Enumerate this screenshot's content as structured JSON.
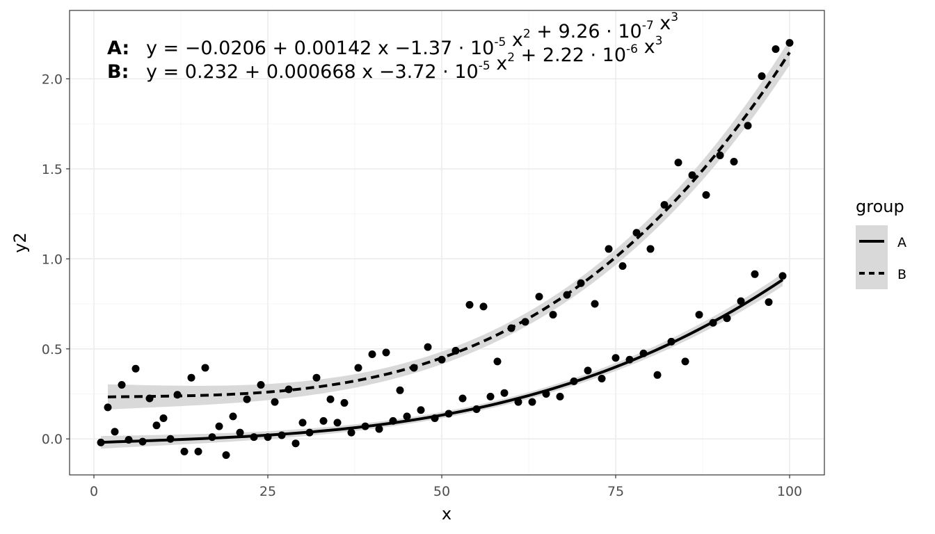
{
  "chart_data": {
    "type": "scatter",
    "xlabel": "x",
    "ylabel": "y2",
    "xlim": [
      -3.5,
      105
    ],
    "ylim": [
      -0.2,
      2.38
    ],
    "x_ticks": [
      0,
      25,
      50,
      75,
      100
    ],
    "x_tick_labels": [
      "0",
      "25",
      "50",
      "75",
      "100"
    ],
    "y_ticks": [
      0,
      0.5,
      1,
      1.5,
      2
    ],
    "y_tick_labels": [
      "0.0",
      "0.5",
      "1.0",
      "1.5",
      "2.0"
    ],
    "grid": true,
    "legend": {
      "title": "group",
      "position": "right",
      "items": [
        {
          "label": "A",
          "linetype": "solid"
        },
        {
          "label": "B",
          "linetype": "dashed"
        }
      ]
    },
    "equations": [
      {
        "label": "A:",
        "parts": [
          {
            "t": "y = "
          },
          {
            "t": "−"
          },
          {
            "t": "0.0206 + 0.00142 x "
          },
          {
            "t": "−"
          },
          {
            "t": "1.37 · 10"
          },
          {
            "t": "-5",
            "sup": true
          },
          {
            "t": " x"
          },
          {
            "t": "2",
            "sup": true
          },
          {
            "t": " + 9.26 · 10"
          },
          {
            "t": "-7",
            "sup": true
          },
          {
            "t": " x"
          },
          {
            "t": "3",
            "sup": true
          }
        ]
      },
      {
        "label": "B:",
        "parts": [
          {
            "t": "y = 0.232 + 0.000668 x "
          },
          {
            "t": "−"
          },
          {
            "t": "3.72 · 10"
          },
          {
            "t": "-5",
            "sup": true
          },
          {
            "t": " x"
          },
          {
            "t": "2",
            "sup": true
          },
          {
            "t": " + 2.22 · 10"
          },
          {
            "t": "-6",
            "sup": true
          },
          {
            "t": " x"
          },
          {
            "t": "3",
            "sup": true
          }
        ]
      }
    ],
    "series": [
      {
        "name": "A",
        "linetype": "solid",
        "fit": {
          "coefficients": [
            -0.0206,
            0.00142,
            -1.37e-05,
            9.26e-07
          ],
          "x_range": [
            1,
            99
          ],
          "se": 0.035
        },
        "points": [
          [
            1,
            -0.02
          ],
          [
            3,
            0.04
          ],
          [
            5,
            -0.005
          ],
          [
            7,
            -0.015
          ],
          [
            9,
            0.075
          ],
          [
            10,
            0.115
          ],
          [
            11,
            0.0
          ],
          [
            13,
            -0.07
          ],
          [
            15,
            -0.07
          ],
          [
            17,
            0.01
          ],
          [
            18,
            0.07
          ],
          [
            19,
            -0.09
          ],
          [
            20,
            0.125
          ],
          [
            21,
            0.035
          ],
          [
            23,
            0.01
          ],
          [
            25,
            0.01
          ],
          [
            27,
            0.02
          ],
          [
            29,
            -0.025
          ],
          [
            30,
            0.09
          ],
          [
            31,
            0.035
          ],
          [
            33,
            0.1
          ],
          [
            35,
            0.09
          ],
          [
            37,
            0.035
          ],
          [
            39,
            0.07
          ],
          [
            41,
            0.055
          ],
          [
            43,
            0.1
          ],
          [
            45,
            0.125
          ],
          [
            47,
            0.16
          ],
          [
            49,
            0.115
          ],
          [
            51,
            0.14
          ],
          [
            53,
            0.225
          ],
          [
            55,
            0.165
          ],
          [
            57,
            0.235
          ],
          [
            59,
            0.255
          ],
          [
            61,
            0.205
          ],
          [
            63,
            0.205
          ],
          [
            65,
            0.25
          ],
          [
            67,
            0.235
          ],
          [
            69,
            0.32
          ],
          [
            71,
            0.38
          ],
          [
            73,
            0.335
          ],
          [
            75,
            0.45
          ],
          [
            77,
            0.44
          ],
          [
            79,
            0.475
          ],
          [
            81,
            0.355
          ],
          [
            83,
            0.54
          ],
          [
            85,
            0.43
          ],
          [
            87,
            0.69
          ],
          [
            89,
            0.645
          ],
          [
            91,
            0.67
          ],
          [
            93,
            0.765
          ],
          [
            95,
            0.915
          ],
          [
            97,
            0.76
          ],
          [
            99,
            0.905
          ]
        ]
      },
      {
        "name": "B",
        "linetype": "dashed",
        "fit": {
          "coefficients": [
            0.232,
            0.000668,
            -3.72e-05,
            2.22e-06
          ],
          "x_range": [
            2,
            100
          ],
          "se": 0.07
        },
        "points": [
          [
            2,
            0.175
          ],
          [
            4,
            0.3
          ],
          [
            6,
            0.39
          ],
          [
            8,
            0.225
          ],
          [
            12,
            0.245
          ],
          [
            14,
            0.34
          ],
          [
            16,
            0.395
          ],
          [
            22,
            0.22
          ],
          [
            24,
            0.3
          ],
          [
            26,
            0.205
          ],
          [
            28,
            0.275
          ],
          [
            32,
            0.34
          ],
          [
            34,
            0.22
          ],
          [
            36,
            0.2
          ],
          [
            38,
            0.395
          ],
          [
            40,
            0.47
          ],
          [
            42,
            0.48
          ],
          [
            44,
            0.27
          ],
          [
            46,
            0.395
          ],
          [
            48,
            0.51
          ],
          [
            50,
            0.44
          ],
          [
            52,
            0.49
          ],
          [
            54,
            0.745
          ],
          [
            56,
            0.735
          ],
          [
            58,
            0.43
          ],
          [
            60,
            0.615
          ],
          [
            62,
            0.65
          ],
          [
            64,
            0.79
          ],
          [
            66,
            0.69
          ],
          [
            68,
            0.8
          ],
          [
            70,
            0.865
          ],
          [
            72,
            0.75
          ],
          [
            74,
            1.055
          ],
          [
            76,
            0.96
          ],
          [
            78,
            1.145
          ],
          [
            80,
            1.055
          ],
          [
            82,
            1.3
          ],
          [
            84,
            1.535
          ],
          [
            86,
            1.465
          ],
          [
            88,
            1.355
          ],
          [
            90,
            1.575
          ],
          [
            92,
            1.54
          ],
          [
            94,
            1.74
          ],
          [
            96,
            2.015
          ],
          [
            98,
            2.165
          ],
          [
            100,
            2.2
          ]
        ]
      }
    ]
  },
  "colors": {
    "point": "#000000",
    "line": "#000000",
    "ribbon": "#d9d9d9",
    "grid_major": "#ebebeb",
    "grid_minor": "#f4f4f4",
    "panel_border": "#333333"
  }
}
